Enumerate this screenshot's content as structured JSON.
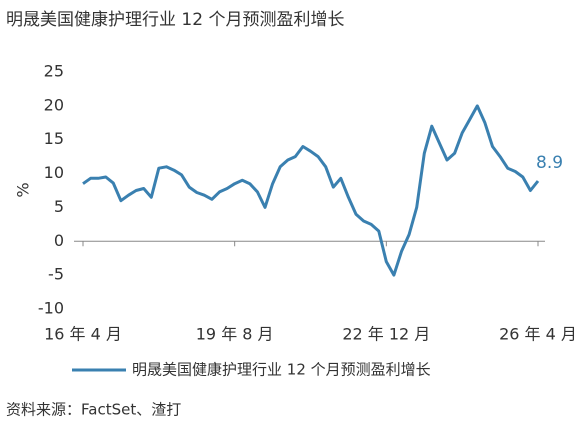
{
  "chart_data": {
    "type": "line",
    "title": "明晟美国健康护理行业 12 个月预测盈利增长",
    "y_label": "%",
    "source": "资料来源：FactSet、渣打",
    "categories": [
      "16 年 4 月",
      null,
      null,
      null,
      null,
      null,
      null,
      null,
      null,
      null,
      null,
      null,
      null,
      null,
      null,
      null,
      null,
      null,
      null,
      null,
      "19 年 8 月",
      null,
      null,
      null,
      null,
      null,
      null,
      null,
      null,
      null,
      null,
      null,
      null,
      null,
      null,
      null,
      null,
      null,
      null,
      null,
      "22 年 12 月",
      null,
      null,
      null,
      null,
      null,
      null,
      null,
      null,
      null,
      null,
      null,
      null,
      null,
      null,
      null,
      null,
      null,
      null,
      null,
      "26 年 4 月"
    ],
    "series": [
      {
        "name": "明晟美国健康护理行业 12 个月预测盈利增长",
        "color": "#3a80b0",
        "values": [
          8.5,
          9.3,
          9.3,
          9.5,
          8.6,
          6.0,
          6.8,
          7.5,
          7.8,
          6.5,
          10.8,
          11.0,
          10.5,
          9.8,
          8.0,
          7.2,
          6.8,
          6.2,
          7.3,
          7.8,
          8.5,
          9.0,
          8.5,
          7.3,
          5.0,
          8.5,
          11.0,
          12.0,
          12.5,
          14.0,
          13.3,
          12.5,
          11.0,
          8.0,
          9.3,
          6.5,
          4.0,
          3.0,
          2.5,
          1.5,
          -3.0,
          -5.0,
          -1.5,
          1.0,
          5.0,
          13.0,
          17.0,
          14.5,
          12.0,
          13.0,
          16.0,
          18.0,
          20.0,
          17.5,
          14.0,
          12.5,
          10.8,
          10.3,
          9.5,
          7.5,
          8.9
        ]
      }
    ],
    "ylim": [
      -10,
      25
    ],
    "yticks": [
      -10,
      -5,
      0,
      5,
      10,
      15,
      20,
      25
    ],
    "grid": false,
    "legend": "bottom"
  }
}
